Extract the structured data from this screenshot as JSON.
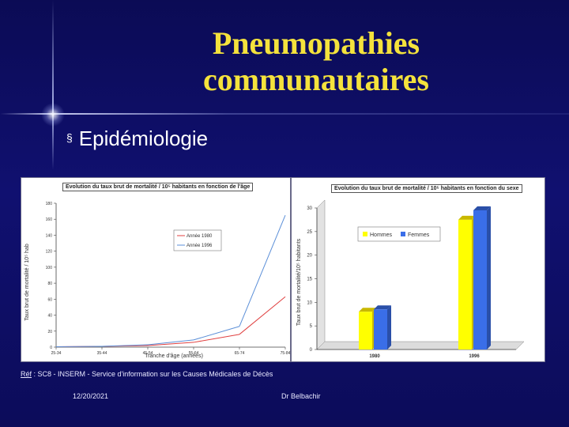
{
  "slide": {
    "title_line1": "Pneumopathies",
    "title_line2": "communautaires",
    "bullet_marker": "§",
    "bullet": "Epidémiologie",
    "ref_label": "Réf",
    "ref_text": " : SC8 - INSERM - Service d'information sur les Causes Médicales de Décès",
    "date": "12/20/2021",
    "author": "Dr Belbachir"
  },
  "colors": {
    "title": "#f4e23c",
    "series_1980": "#e04040",
    "series_1996": "#5b8fd8",
    "hommes": "#ffff00",
    "femmes": "#3a6ee8"
  },
  "chart_data": [
    {
      "type": "line",
      "title": "Evolution du taux brut de mortalité / 10⁵ habitants en fonction de l'âge",
      "xlabel": "Tranche d'âge (années)",
      "ylabel": "Taux brut de mortalité / 10⁵ hab",
      "x": [
        "25-34",
        "35-44",
        "45-54",
        "55-64",
        "65-74",
        "75-84"
      ],
      "ylim": [
        0,
        180
      ],
      "yticks": [
        "0",
        "20",
        "40",
        "60",
        "80",
        "100",
        "120",
        "140",
        "160",
        "180"
      ],
      "grid": false,
      "legend_position": "center-right",
      "series": [
        {
          "name": "Année 1980",
          "values": [
            0.5,
            1,
            2,
            6,
            16,
            63
          ]
        },
        {
          "name": "Année 1996",
          "values": [
            0.5,
            1,
            3,
            9,
            26,
            165
          ]
        }
      ]
    },
    {
      "type": "bar",
      "title": "Evolution du taux brut de mortalité / 10⁵ habitants en fonction du sexe",
      "ylabel": "Taux brut de mortalité/10⁵ habitants",
      "categories": [
        "1980",
        "1996"
      ],
      "ylim": [
        0,
        30
      ],
      "yticks": [
        "0",
        "5",
        "10",
        "15",
        "20",
        "25",
        "30"
      ],
      "legend_position": "top-left",
      "series": [
        {
          "name": "Hommes",
          "values": [
            8.0,
            27.5
          ]
        },
        {
          "name": "Femmes",
          "values": [
            8.5,
            29.5
          ]
        }
      ]
    }
  ]
}
